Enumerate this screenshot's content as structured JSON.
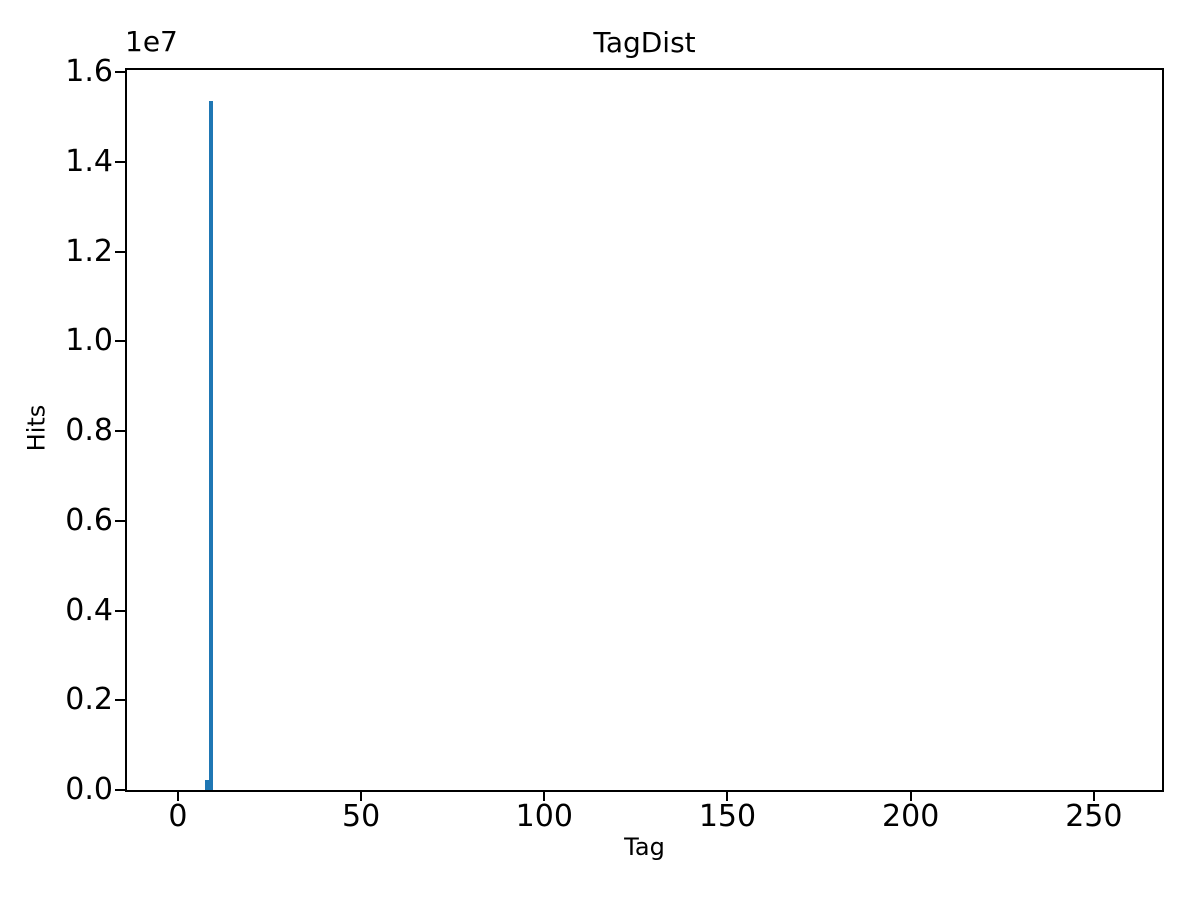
{
  "chart_data": {
    "type": "bar",
    "title": "TagDist",
    "xlabel": "Tag",
    "ylabel": "Hits",
    "y_axis_offset_text": "1e7",
    "grid": false,
    "legend": false,
    "bar_color": "#1f77b4",
    "bar_width": 1,
    "xlim": [
      -13.9,
      268.6
    ],
    "ylim": [
      0,
      16045000
    ],
    "x_ticks": [
      {
        "value": 0,
        "label": "0"
      },
      {
        "value": 50,
        "label": "50"
      },
      {
        "value": 100,
        "label": "100"
      },
      {
        "value": 150,
        "label": "150"
      },
      {
        "value": 200,
        "label": "200"
      },
      {
        "value": 250,
        "label": "250"
      }
    ],
    "y_ticks": [
      {
        "value": 0,
        "label": "0.0"
      },
      {
        "value": 2000000,
        "label": "0.2"
      },
      {
        "value": 4000000,
        "label": "0.4"
      },
      {
        "value": 6000000,
        "label": "0.6"
      },
      {
        "value": 8000000,
        "label": "0.8"
      },
      {
        "value": 10000000,
        "label": "1.0"
      },
      {
        "value": 12000000,
        "label": "1.2"
      },
      {
        "value": 14000000,
        "label": "1.4"
      },
      {
        "value": 16000000,
        "label": "1.6"
      }
    ],
    "bars": [
      {
        "tag": 8,
        "hits": 220000
      },
      {
        "tag": 9,
        "hits": 15350000
      }
    ],
    "note": "Single dominant spike near tag 8-9 (peak ~1.53e7 hits); all other tags ~0."
  }
}
